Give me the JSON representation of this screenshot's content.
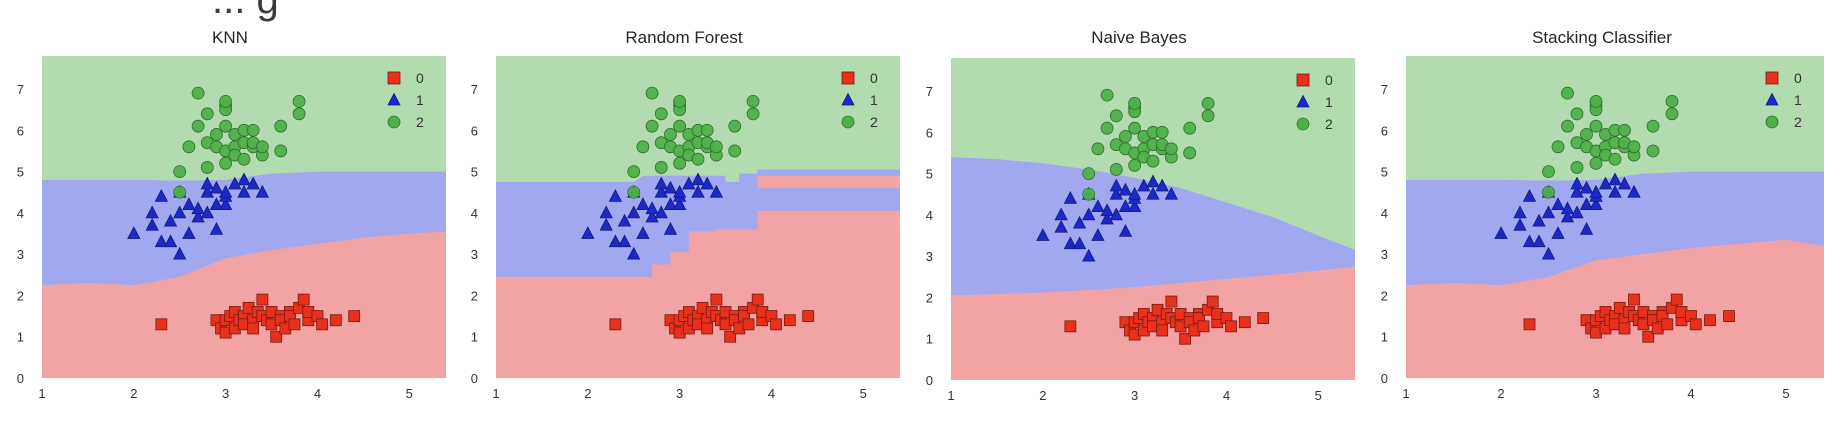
{
  "heading_fragment": "... g",
  "chart_data": [
    {
      "type": "scatter",
      "title": "KNN",
      "xlim": [
        1,
        5.4
      ],
      "ylim": [
        0,
        7.8
      ],
      "xticks": [
        1,
        2,
        3,
        4,
        5
      ],
      "yticks": [
        0,
        1,
        2,
        3,
        4,
        5,
        6,
        7
      ],
      "legend": [
        "0",
        "1",
        "2"
      ],
      "regions": {
        "upper_boundary": [
          [
            1.0,
            4.8
          ],
          [
            1.5,
            4.8
          ],
          [
            2.0,
            4.8
          ],
          [
            2.5,
            4.78
          ],
          [
            3.0,
            4.8
          ],
          [
            3.5,
            4.95
          ],
          [
            4.0,
            5.0
          ],
          [
            4.5,
            5.0
          ],
          [
            5.0,
            5.0
          ],
          [
            5.4,
            5.0
          ]
        ],
        "lower_boundary": [
          [
            1.0,
            2.25
          ],
          [
            1.5,
            2.3
          ],
          [
            2.0,
            2.25
          ],
          [
            2.5,
            2.45
          ],
          [
            3.0,
            2.9
          ],
          [
            3.5,
            3.1
          ],
          [
            4.0,
            3.25
          ],
          [
            4.5,
            3.4
          ],
          [
            5.0,
            3.5
          ],
          [
            5.4,
            3.55
          ]
        ]
      },
      "series_ref": "iris"
    },
    {
      "type": "scatter",
      "title": "Random Forest",
      "xlim": [
        1,
        5.4
      ],
      "ylim": [
        0,
        7.8
      ],
      "xticks": [
        1,
        2,
        3,
        4,
        5
      ],
      "yticks": [
        0,
        1,
        2,
        3,
        4,
        5,
        6,
        7
      ],
      "legend": [
        "0",
        "1",
        "2"
      ],
      "regions": {
        "upper_boundary": [
          [
            1.0,
            4.75
          ],
          [
            2.5,
            4.75
          ],
          [
            2.6,
            4.9
          ],
          [
            3.5,
            4.9
          ],
          [
            3.5,
            4.75
          ],
          [
            3.65,
            4.75
          ],
          [
            3.65,
            4.95
          ],
          [
            3.85,
            4.95
          ],
          [
            3.85,
            5.05
          ],
          [
            5.4,
            5.05
          ]
        ],
        "lower_boundary": [
          [
            1.0,
            2.45
          ],
          [
            2.0,
            2.45
          ],
          [
            2.7,
            2.45
          ],
          [
            2.7,
            2.75
          ],
          [
            2.9,
            2.75
          ],
          [
            2.9,
            3.05
          ],
          [
            3.1,
            3.05
          ],
          [
            3.1,
            3.55
          ],
          [
            3.4,
            3.55
          ],
          [
            3.4,
            3.6
          ],
          [
            3.85,
            3.6
          ],
          [
            3.85,
            4.05
          ],
          [
            5.4,
            4.05
          ]
        ],
        "extra_class0_band": [
          3.85,
          5.4,
          4.6,
          4.9
        ]
      },
      "series_ref": "iris"
    },
    {
      "type": "scatter",
      "title": "Naive Bayes",
      "xlim": [
        1,
        5.4
      ],
      "ylim": [
        0,
        7.8
      ],
      "xticks": [
        1,
        2,
        3,
        4,
        5
      ],
      "yticks": [
        0,
        1,
        2,
        3,
        4,
        5,
        6,
        7
      ],
      "legend": [
        "0",
        "1",
        "2"
      ],
      "regions": {
        "upper_boundary": [
          [
            1.0,
            5.4
          ],
          [
            1.5,
            5.35
          ],
          [
            2.0,
            5.25
          ],
          [
            2.5,
            5.1
          ],
          [
            3.0,
            4.9
          ],
          [
            3.5,
            4.65
          ],
          [
            4.0,
            4.3
          ],
          [
            4.5,
            3.95
          ],
          [
            5.0,
            3.5
          ],
          [
            5.4,
            3.15
          ]
        ],
        "lower_boundary": [
          [
            1.0,
            2.05
          ],
          [
            1.5,
            2.08
          ],
          [
            2.0,
            2.12
          ],
          [
            2.5,
            2.18
          ],
          [
            3.0,
            2.25
          ],
          [
            3.5,
            2.35
          ],
          [
            4.0,
            2.45
          ],
          [
            4.5,
            2.55
          ],
          [
            5.0,
            2.65
          ],
          [
            5.4,
            2.75
          ]
        ]
      },
      "series_ref": "iris"
    },
    {
      "type": "scatter",
      "title": "Stacking Classifier",
      "xlim": [
        1,
        5.4
      ],
      "ylim": [
        0,
        7.8
      ],
      "xticks": [
        1,
        2,
        3,
        4,
        5
      ],
      "yticks": [
        0,
        1,
        2,
        3,
        4,
        5,
        6,
        7
      ],
      "legend": [
        "0",
        "1",
        "2"
      ],
      "regions": {
        "upper_boundary": [
          [
            1.0,
            4.8
          ],
          [
            1.5,
            4.8
          ],
          [
            2.0,
            4.8
          ],
          [
            2.5,
            4.78
          ],
          [
            3.0,
            4.8
          ],
          [
            3.5,
            4.95
          ],
          [
            4.0,
            5.0
          ],
          [
            4.5,
            5.0
          ],
          [
            5.0,
            5.0
          ],
          [
            5.4,
            5.0
          ]
        ],
        "lower_boundary": [
          [
            1.0,
            2.25
          ],
          [
            1.5,
            2.3
          ],
          [
            2.0,
            2.25
          ],
          [
            2.5,
            2.45
          ],
          [
            3.0,
            2.85
          ],
          [
            3.5,
            3.0
          ],
          [
            4.0,
            3.15
          ],
          [
            4.5,
            3.25
          ],
          [
            5.0,
            3.35
          ],
          [
            5.4,
            3.2
          ]
        ]
      },
      "series_ref": "iris"
    }
  ],
  "iris": {
    "colors": {
      "0": "#e8301c",
      "1": "#1e28c8",
      "2": "#4fb04a"
    },
    "region_colors": {
      "0": "#f2a3a3",
      "1": "#a2a8f0",
      "2": "#b2dcb0"
    },
    "class_0": [
      [
        2.3,
        1.3
      ],
      [
        2.9,
        1.4
      ],
      [
        2.95,
        1.2
      ],
      [
        3.0,
        1.4
      ],
      [
        3.0,
        1.1
      ],
      [
        3.05,
        1.5
      ],
      [
        3.1,
        1.6
      ],
      [
        3.1,
        1.2
      ],
      [
        3.15,
        1.4
      ],
      [
        3.2,
        1.5
      ],
      [
        3.2,
        1.3
      ],
      [
        3.25,
        1.7
      ],
      [
        3.3,
        1.4
      ],
      [
        3.3,
        1.2
      ],
      [
        3.35,
        1.6
      ],
      [
        3.4,
        1.5
      ],
      [
        3.4,
        1.9
      ],
      [
        3.45,
        1.4
      ],
      [
        3.5,
        1.6
      ],
      [
        3.5,
        1.3
      ],
      [
        3.55,
        1.0
      ],
      [
        3.6,
        1.5
      ],
      [
        3.6,
        1.4
      ],
      [
        3.65,
        1.2
      ],
      [
        3.7,
        1.6
      ],
      [
        3.7,
        1.5
      ],
      [
        3.75,
        1.3
      ],
      [
        3.8,
        1.7
      ],
      [
        3.85,
        1.9
      ],
      [
        3.9,
        1.4
      ],
      [
        3.9,
        1.6
      ],
      [
        4.0,
        1.5
      ],
      [
        4.05,
        1.3
      ],
      [
        4.2,
        1.4
      ],
      [
        4.4,
        1.5
      ]
    ],
    "class_1": [
      [
        2.0,
        3.5
      ],
      [
        2.2,
        4.0
      ],
      [
        2.2,
        3.7
      ],
      [
        2.3,
        4.4
      ],
      [
        2.3,
        3.3
      ],
      [
        2.4,
        3.8
      ],
      [
        2.4,
        3.3
      ],
      [
        2.5,
        4.0
      ],
      [
        2.5,
        4.5
      ],
      [
        2.5,
        3.0
      ],
      [
        2.6,
        3.5
      ],
      [
        2.6,
        4.2
      ],
      [
        2.7,
        3.9
      ],
      [
        2.7,
        4.1
      ],
      [
        2.8,
        4.0
      ],
      [
        2.8,
        4.5
      ],
      [
        2.8,
        4.7
      ],
      [
        2.9,
        4.2
      ],
      [
        2.9,
        4.6
      ],
      [
        2.9,
        3.6
      ],
      [
        3.0,
        4.2
      ],
      [
        3.0,
        4.4
      ],
      [
        3.0,
        4.5
      ],
      [
        3.1,
        4.7
      ],
      [
        3.2,
        4.8
      ],
      [
        3.2,
        4.5
      ],
      [
        3.3,
        4.7
      ],
      [
        3.4,
        4.5
      ]
    ],
    "class_2": [
      [
        2.5,
        5.0
      ],
      [
        2.5,
        4.5
      ],
      [
        2.6,
        5.6
      ],
      [
        2.7,
        6.1
      ],
      [
        2.7,
        6.9
      ],
      [
        2.8,
        5.1
      ],
      [
        2.8,
        5.7
      ],
      [
        2.8,
        6.4
      ],
      [
        2.9,
        5.6
      ],
      [
        2.9,
        5.9
      ],
      [
        3.0,
        5.5
      ],
      [
        3.0,
        5.2
      ],
      [
        3.0,
        6.1
      ],
      [
        3.0,
        6.6
      ],
      [
        3.0,
        6.5
      ],
      [
        3.0,
        6.7
      ],
      [
        3.1,
        5.6
      ],
      [
        3.1,
        5.9
      ],
      [
        3.1,
        5.4
      ],
      [
        3.2,
        5.7
      ],
      [
        3.2,
        5.3
      ],
      [
        3.2,
        6.0
      ],
      [
        3.3,
        5.6
      ],
      [
        3.3,
        6.0
      ],
      [
        3.3,
        5.7
      ],
      [
        3.4,
        5.4
      ],
      [
        3.4,
        5.6
      ],
      [
        3.6,
        5.5
      ],
      [
        3.6,
        6.1
      ],
      [
        3.8,
        6.7
      ],
      [
        3.8,
        6.4
      ]
    ]
  }
}
